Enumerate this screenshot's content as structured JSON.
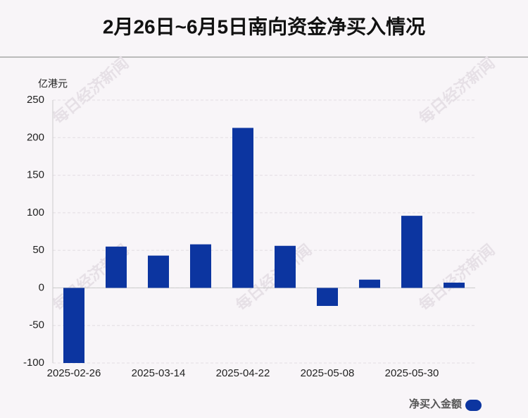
{
  "chart_data": {
    "type": "bar",
    "title": "2月26日~6月5日南向资金净买入情况",
    "y_unit": "亿港元",
    "watermark": "每日经济新闻",
    "categories": [
      "2025-02-26",
      null,
      "2025-03-14",
      null,
      "2025-04-22",
      null,
      "2025-05-08",
      null,
      "2025-05-30",
      null
    ],
    "series": [
      {
        "name": "净买入金额",
        "color": "#0c35a0",
        "values": [
          -100,
          55,
          43,
          58,
          213,
          56,
          -24,
          11,
          96,
          7
        ]
      }
    ],
    "ylim": [
      -100,
      250
    ],
    "yticks": [
      -100,
      -50,
      0,
      50,
      100,
      150,
      200,
      250
    ],
    "grid": true,
    "legend": "bottom-right"
  }
}
